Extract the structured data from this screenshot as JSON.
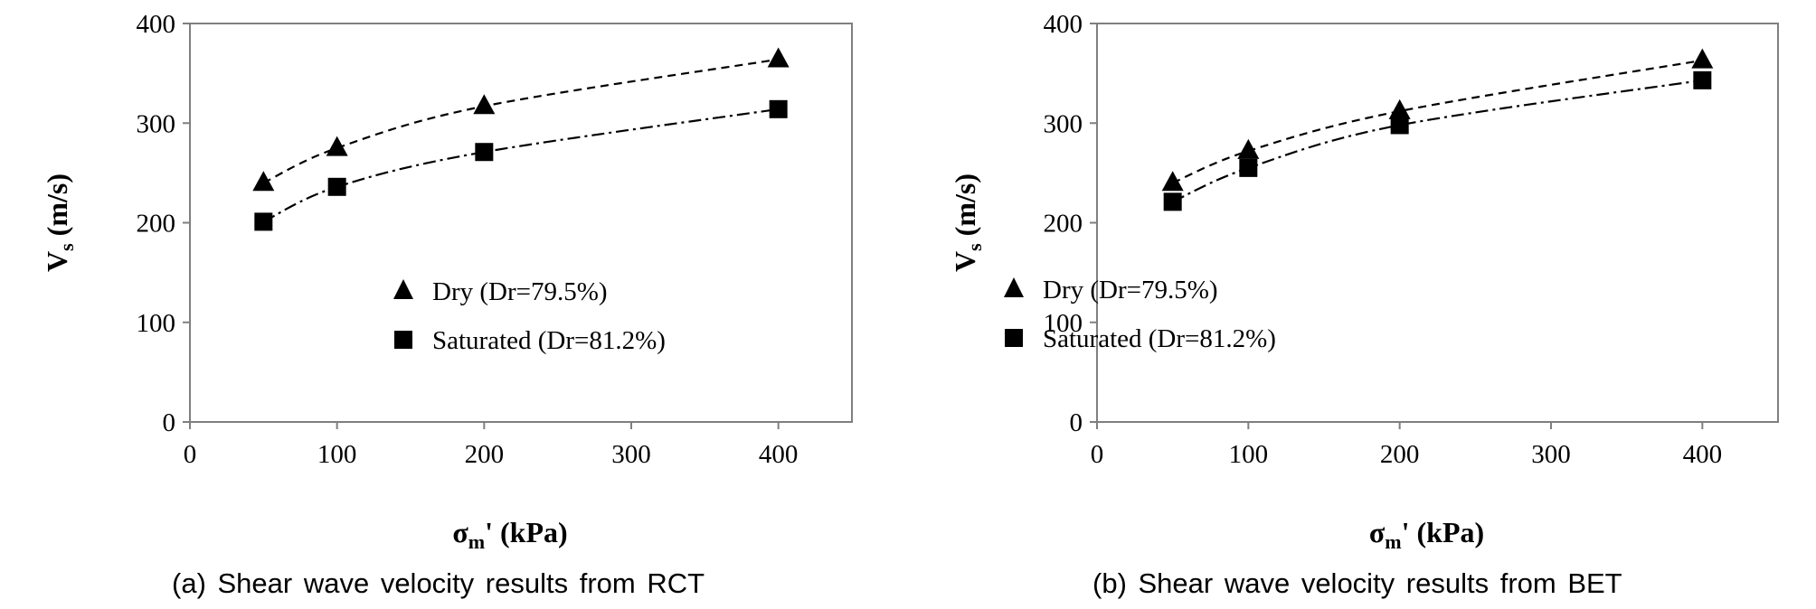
{
  "chart_data": [
    {
      "type": "scatter",
      "caption": "(a) Shear wave velocity results from RCT",
      "xlabel_main": "σ",
      "xlabel_sub": "m",
      "xlabel_tail": "' (kPa)",
      "ylabel_main": "V",
      "ylabel_sub": "s",
      "ylabel_tail": " (m/s)",
      "xlim": [
        0,
        450
      ],
      "ylim": [
        0,
        400
      ],
      "xticks": [
        "0",
        "100",
        "200",
        "300",
        "400"
      ],
      "yticks": [
        "0",
        "100",
        "200",
        "300",
        "400"
      ],
      "grid": false,
      "legend_position": "bottom-center",
      "series": [
        {
          "name": "Dry (Dr=79.5%)",
          "marker": "triangle",
          "line_style": "dashed",
          "x": [
            50,
            100,
            200,
            400
          ],
          "y": [
            240,
            275,
            317,
            364
          ]
        },
        {
          "name": "Saturated (Dr=81.2%)",
          "marker": "square",
          "line_style": "dash-dot",
          "x": [
            50,
            100,
            200,
            400
          ],
          "y": [
            201,
            236,
            271,
            314
          ]
        }
      ]
    },
    {
      "type": "scatter",
      "caption": "(b) Shear wave velocity results from BET",
      "xlabel_main": "σ",
      "xlabel_sub": "m",
      "xlabel_tail": "' (kPa)",
      "ylabel_main": "V",
      "ylabel_sub": "s",
      "ylabel_tail": " (m/s)",
      "xlim": [
        0,
        450
      ],
      "ylim": [
        0,
        400
      ],
      "xticks": [
        "0",
        "100",
        "200",
        "300",
        "400"
      ],
      "yticks": [
        "0",
        "100",
        "200",
        "300",
        "400"
      ],
      "grid": false,
      "legend_position": "bottom-center",
      "series": [
        {
          "name": "Dry (Dr=79.5%)",
          "marker": "triangle",
          "line_style": "dashed",
          "x": [
            50,
            100,
            200,
            400
          ],
          "y": [
            240,
            272,
            312,
            363
          ]
        },
        {
          "name": "Saturated (Dr=81.2%)",
          "marker": "square",
          "line_style": "dash-dot",
          "x": [
            50,
            100,
            200,
            400
          ],
          "y": [
            221,
            255,
            298,
            343
          ]
        }
      ]
    }
  ],
  "colors": {
    "ink": "#000000",
    "frame": "#7f7f7f",
    "background": "#ffffff"
  }
}
